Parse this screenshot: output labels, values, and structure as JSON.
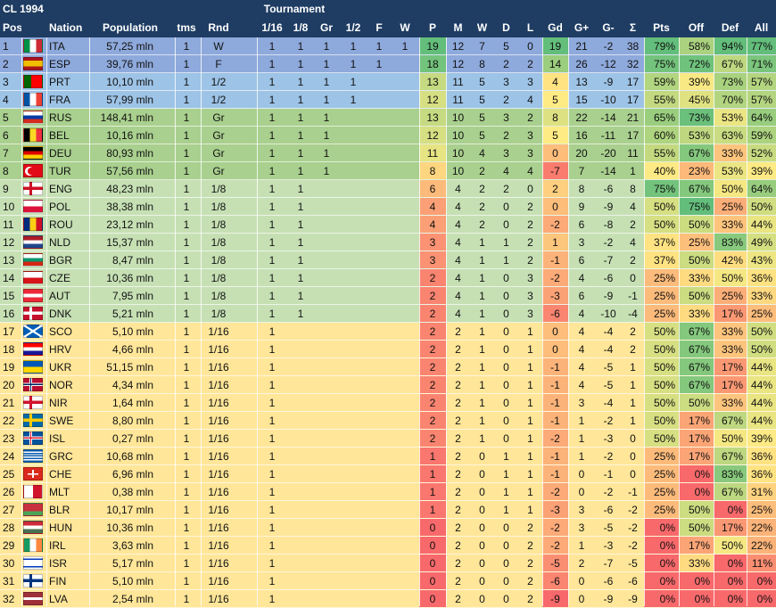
{
  "header": {
    "title": "CL 1994",
    "group_label": "Tournament",
    "columns": [
      "Pos",
      "Nation",
      "Population",
      "tms",
      "Rnd",
      "1/16",
      "1/8",
      "Gr",
      "1/2",
      "F",
      "W",
      "P",
      "M",
      "W",
      "D",
      "L",
      "Gd",
      "G+",
      "G-",
      "Σ",
      "Pts",
      "Off",
      "Def",
      "All"
    ]
  },
  "colors": {
    "header_bg": "#1f3d63",
    "row_top2": "#8ea9db",
    "row_semis": "#9dc3e6",
    "row_group": "#a9d08e",
    "row_r16": "#c6e0b4",
    "row_r32": "#ffe699",
    "good": "#63be7b",
    "mid": "#ffeb84",
    "bad": "#f8696b"
  },
  "rows": [
    {
      "pos": "1",
      "code": "ITA",
      "flag": "ita",
      "pop": "57,25 mln",
      "tms": "1",
      "rnd": "W",
      "r16": "1",
      "r8": "1",
      "gr": "1",
      "sf": "1",
      "f": "1",
      "w": "1",
      "p": "19",
      "m": "12",
      "won": "7",
      "d": "5",
      "lost": "0",
      "gd": "19",
      "gf": "21",
      "ga": "-2",
      "sum": "38",
      "pts": "79%",
      "off": "58%",
      "def": "94%",
      "all": "77%"
    },
    {
      "pos": "2",
      "code": "ESP",
      "flag": "esp",
      "pop": "39,76 mln",
      "tms": "1",
      "rnd": "F",
      "r16": "1",
      "r8": "1",
      "gr": "1",
      "sf": "1",
      "f": "1",
      "w": "",
      "p": "18",
      "m": "12",
      "won": "8",
      "d": "2",
      "lost": "2",
      "gd": "14",
      "gf": "26",
      "ga": "-12",
      "sum": "32",
      "pts": "75%",
      "off": "72%",
      "def": "67%",
      "all": "71%"
    },
    {
      "pos": "3",
      "code": "PRT",
      "flag": "prt",
      "pop": "10,10 mln",
      "tms": "1",
      "rnd": "1/2",
      "r16": "1",
      "r8": "1",
      "gr": "1",
      "sf": "1",
      "f": "",
      "w": "",
      "p": "13",
      "m": "11",
      "won": "5",
      "d": "3",
      "lost": "3",
      "gd": "4",
      "gf": "13",
      "ga": "-9",
      "sum": "17",
      "pts": "59%",
      "off": "39%",
      "def": "73%",
      "all": "57%"
    },
    {
      "pos": "4",
      "code": "FRA",
      "flag": "fra",
      "pop": "57,99 mln",
      "tms": "1",
      "rnd": "1/2",
      "r16": "1",
      "r8": "1",
      "gr": "1",
      "sf": "1",
      "f": "",
      "w": "",
      "p": "12",
      "m": "11",
      "won": "5",
      "d": "2",
      "lost": "4",
      "gd": "5",
      "gf": "15",
      "ga": "-10",
      "sum": "17",
      "pts": "55%",
      "off": "45%",
      "def": "70%",
      "all": "57%"
    },
    {
      "pos": "5",
      "code": "RUS",
      "flag": "rus",
      "pop": "148,41 mln",
      "tms": "1",
      "rnd": "Gr",
      "r16": "1",
      "r8": "1",
      "gr": "1",
      "sf": "",
      "f": "",
      "w": "",
      "p": "13",
      "m": "10",
      "won": "5",
      "d": "3",
      "lost": "2",
      "gd": "8",
      "gf": "22",
      "ga": "-14",
      "sum": "21",
      "pts": "65%",
      "off": "73%",
      "def": "53%",
      "all": "64%"
    },
    {
      "pos": "6",
      "code": "BEL",
      "flag": "bel",
      "pop": "10,16 mln",
      "tms": "1",
      "rnd": "Gr",
      "r16": "1",
      "r8": "1",
      "gr": "1",
      "sf": "",
      "f": "",
      "w": "",
      "p": "12",
      "m": "10",
      "won": "5",
      "d": "2",
      "lost": "3",
      "gd": "5",
      "gf": "16",
      "ga": "-11",
      "sum": "17",
      "pts": "60%",
      "off": "53%",
      "def": "63%",
      "all": "59%"
    },
    {
      "pos": "7",
      "code": "DEU",
      "flag": "deu",
      "pop": "80,93 mln",
      "tms": "1",
      "rnd": "Gr",
      "r16": "1",
      "r8": "1",
      "gr": "1",
      "sf": "",
      "f": "",
      "w": "",
      "p": "11",
      "m": "10",
      "won": "4",
      "d": "3",
      "lost": "3",
      "gd": "0",
      "gf": "20",
      "ga": "-20",
      "sum": "11",
      "pts": "55%",
      "off": "67%",
      "def": "33%",
      "all": "52%"
    },
    {
      "pos": "8",
      "code": "TUR",
      "flag": "tur",
      "pop": "57,56 mln",
      "tms": "1",
      "rnd": "Gr",
      "r16": "1",
      "r8": "1",
      "gr": "1",
      "sf": "",
      "f": "",
      "w": "",
      "p": "8",
      "m": "10",
      "won": "2",
      "d": "4",
      "lost": "4",
      "gd": "-7",
      "gf": "7",
      "ga": "-14",
      "sum": "1",
      "pts": "40%",
      "off": "23%",
      "def": "53%",
      "all": "39%"
    },
    {
      "pos": "9",
      "code": "ENG",
      "flag": "eng",
      "pop": "48,23 mln",
      "tms": "1",
      "rnd": "1/8",
      "r16": "1",
      "r8": "1",
      "gr": "",
      "sf": "",
      "f": "",
      "w": "",
      "p": "6",
      "m": "4",
      "won": "2",
      "d": "2",
      "lost": "0",
      "gd": "2",
      "gf": "8",
      "ga": "-6",
      "sum": "8",
      "pts": "75%",
      "off": "67%",
      "def": "50%",
      "all": "64%"
    },
    {
      "pos": "10",
      "code": "POL",
      "flag": "pol",
      "pop": "38,38 mln",
      "tms": "1",
      "rnd": "1/8",
      "r16": "1",
      "r8": "1",
      "gr": "",
      "sf": "",
      "f": "",
      "w": "",
      "p": "4",
      "m": "4",
      "won": "2",
      "d": "0",
      "lost": "2",
      "gd": "0",
      "gf": "9",
      "ga": "-9",
      "sum": "4",
      "pts": "50%",
      "off": "75%",
      "def": "25%",
      "all": "50%"
    },
    {
      "pos": "11",
      "code": "ROU",
      "flag": "rou",
      "pop": "23,12 mln",
      "tms": "1",
      "rnd": "1/8",
      "r16": "1",
      "r8": "1",
      "gr": "",
      "sf": "",
      "f": "",
      "w": "",
      "p": "4",
      "m": "4",
      "won": "2",
      "d": "0",
      "lost": "2",
      "gd": "-2",
      "gf": "6",
      "ga": "-8",
      "sum": "2",
      "pts": "50%",
      "off": "50%",
      "def": "33%",
      "all": "44%"
    },
    {
      "pos": "12",
      "code": "NLD",
      "flag": "nld",
      "pop": "15,37 mln",
      "tms": "1",
      "rnd": "1/8",
      "r16": "1",
      "r8": "1",
      "gr": "",
      "sf": "",
      "f": "",
      "w": "",
      "p": "3",
      "m": "4",
      "won": "1",
      "d": "1",
      "lost": "2",
      "gd": "1",
      "gf": "3",
      "ga": "-2",
      "sum": "4",
      "pts": "37%",
      "off": "25%",
      "def": "83%",
      "all": "49%"
    },
    {
      "pos": "13",
      "code": "BGR",
      "flag": "bgr",
      "pop": "8,47 mln",
      "tms": "1",
      "rnd": "1/8",
      "r16": "1",
      "r8": "1",
      "gr": "",
      "sf": "",
      "f": "",
      "w": "",
      "p": "3",
      "m": "4",
      "won": "1",
      "d": "1",
      "lost": "2",
      "gd": "-1",
      "gf": "6",
      "ga": "-7",
      "sum": "2",
      "pts": "37%",
      "off": "50%",
      "def": "42%",
      "all": "43%"
    },
    {
      "pos": "14",
      "code": "CZE",
      "flag": "cze",
      "pop": "10,36 mln",
      "tms": "1",
      "rnd": "1/8",
      "r16": "1",
      "r8": "1",
      "gr": "",
      "sf": "",
      "f": "",
      "w": "",
      "p": "2",
      "m": "4",
      "won": "1",
      "d": "0",
      "lost": "3",
      "gd": "-2",
      "gf": "4",
      "ga": "-6",
      "sum": "0",
      "pts": "25%",
      "off": "33%",
      "def": "50%",
      "all": "36%"
    },
    {
      "pos": "15",
      "code": "AUT",
      "flag": "aut",
      "pop": "7,95 mln",
      "tms": "1",
      "rnd": "1/8",
      "r16": "1",
      "r8": "1",
      "gr": "",
      "sf": "",
      "f": "",
      "w": "",
      "p": "2",
      "m": "4",
      "won": "1",
      "d": "0",
      "lost": "3",
      "gd": "-3",
      "gf": "6",
      "ga": "-9",
      "sum": "-1",
      "pts": "25%",
      "off": "50%",
      "def": "25%",
      "all": "33%"
    },
    {
      "pos": "16",
      "code": "DNK",
      "flag": "dnk",
      "pop": "5,21 mln",
      "tms": "1",
      "rnd": "1/8",
      "r16": "1",
      "r8": "1",
      "gr": "",
      "sf": "",
      "f": "",
      "w": "",
      "p": "2",
      "m": "4",
      "won": "1",
      "d": "0",
      "lost": "3",
      "gd": "-6",
      "gf": "4",
      "ga": "-10",
      "sum": "-4",
      "pts": "25%",
      "off": "33%",
      "def": "17%",
      "all": "25%"
    },
    {
      "pos": "17",
      "code": "SCO",
      "flag": "sco",
      "pop": "5,10 mln",
      "tms": "1",
      "rnd": "1/16",
      "r16": "1",
      "r8": "",
      "gr": "",
      "sf": "",
      "f": "",
      "w": "",
      "p": "2",
      "m": "2",
      "won": "1",
      "d": "0",
      "lost": "1",
      "gd": "0",
      "gf": "4",
      "ga": "-4",
      "sum": "2",
      "pts": "50%",
      "off": "67%",
      "def": "33%",
      "all": "50%"
    },
    {
      "pos": "18",
      "code": "HRV",
      "flag": "hrv",
      "pop": "4,66 mln",
      "tms": "1",
      "rnd": "1/16",
      "r16": "1",
      "r8": "",
      "gr": "",
      "sf": "",
      "f": "",
      "w": "",
      "p": "2",
      "m": "2",
      "won": "1",
      "d": "0",
      "lost": "1",
      "gd": "0",
      "gf": "4",
      "ga": "-4",
      "sum": "2",
      "pts": "50%",
      "off": "67%",
      "def": "33%",
      "all": "50%"
    },
    {
      "pos": "19",
      "code": "UKR",
      "flag": "ukr",
      "pop": "51,15 mln",
      "tms": "1",
      "rnd": "1/16",
      "r16": "1",
      "r8": "",
      "gr": "",
      "sf": "",
      "f": "",
      "w": "",
      "p": "2",
      "m": "2",
      "won": "1",
      "d": "0",
      "lost": "1",
      "gd": "-1",
      "gf": "4",
      "ga": "-5",
      "sum": "1",
      "pts": "50%",
      "off": "67%",
      "def": "17%",
      "all": "44%"
    },
    {
      "pos": "20",
      "code": "NOR",
      "flag": "nor",
      "pop": "4,34 mln",
      "tms": "1",
      "rnd": "1/16",
      "r16": "1",
      "r8": "",
      "gr": "",
      "sf": "",
      "f": "",
      "w": "",
      "p": "2",
      "m": "2",
      "won": "1",
      "d": "0",
      "lost": "1",
      "gd": "-1",
      "gf": "4",
      "ga": "-5",
      "sum": "1",
      "pts": "50%",
      "off": "67%",
      "def": "17%",
      "all": "44%"
    },
    {
      "pos": "21",
      "code": "NIR",
      "flag": "nir",
      "pop": "1,64 mln",
      "tms": "1",
      "rnd": "1/16",
      "r16": "1",
      "r8": "",
      "gr": "",
      "sf": "",
      "f": "",
      "w": "",
      "p": "2",
      "m": "2",
      "won": "1",
      "d": "0",
      "lost": "1",
      "gd": "-1",
      "gf": "3",
      "ga": "-4",
      "sum": "1",
      "pts": "50%",
      "off": "50%",
      "def": "33%",
      "all": "44%"
    },
    {
      "pos": "22",
      "code": "SWE",
      "flag": "swe",
      "pop": "8,80 mln",
      "tms": "1",
      "rnd": "1/16",
      "r16": "1",
      "r8": "",
      "gr": "",
      "sf": "",
      "f": "",
      "w": "",
      "p": "2",
      "m": "2",
      "won": "1",
      "d": "0",
      "lost": "1",
      "gd": "-1",
      "gf": "1",
      "ga": "-2",
      "sum": "1",
      "pts": "50%",
      "off": "17%",
      "def": "67%",
      "all": "44%"
    },
    {
      "pos": "23",
      "code": "ISL",
      "flag": "isl",
      "pop": "0,27 mln",
      "tms": "1",
      "rnd": "1/16",
      "r16": "1",
      "r8": "",
      "gr": "",
      "sf": "",
      "f": "",
      "w": "",
      "p": "2",
      "m": "2",
      "won": "1",
      "d": "0",
      "lost": "1",
      "gd": "-2",
      "gf": "1",
      "ga": "-3",
      "sum": "0",
      "pts": "50%",
      "off": "17%",
      "def": "50%",
      "all": "39%"
    },
    {
      "pos": "24",
      "code": "GRC",
      "flag": "grc",
      "pop": "10,68 mln",
      "tms": "1",
      "rnd": "1/16",
      "r16": "1",
      "r8": "",
      "gr": "",
      "sf": "",
      "f": "",
      "w": "",
      "p": "1",
      "m": "2",
      "won": "0",
      "d": "1",
      "lost": "1",
      "gd": "-1",
      "gf": "1",
      "ga": "-2",
      "sum": "0",
      "pts": "25%",
      "off": "17%",
      "def": "67%",
      "all": "36%"
    },
    {
      "pos": "25",
      "code": "CHE",
      "flag": "che",
      "pop": "6,96 mln",
      "tms": "1",
      "rnd": "1/16",
      "r16": "1",
      "r8": "",
      "gr": "",
      "sf": "",
      "f": "",
      "w": "",
      "p": "1",
      "m": "2",
      "won": "0",
      "d": "1",
      "lost": "1",
      "gd": "-1",
      "gf": "0",
      "ga": "-1",
      "sum": "0",
      "pts": "25%",
      "off": "0%",
      "def": "83%",
      "all": "36%"
    },
    {
      "pos": "26",
      "code": "MLT",
      "flag": "mlt",
      "pop": "0,38 mln",
      "tms": "1",
      "rnd": "1/16",
      "r16": "1",
      "r8": "",
      "gr": "",
      "sf": "",
      "f": "",
      "w": "",
      "p": "1",
      "m": "2",
      "won": "0",
      "d": "1",
      "lost": "1",
      "gd": "-2",
      "gf": "0",
      "ga": "-2",
      "sum": "-1",
      "pts": "25%",
      "off": "0%",
      "def": "67%",
      "all": "31%"
    },
    {
      "pos": "27",
      "code": "BLR",
      "flag": "blr",
      "pop": "10,17 mln",
      "tms": "1",
      "rnd": "1/16",
      "r16": "1",
      "r8": "",
      "gr": "",
      "sf": "",
      "f": "",
      "w": "",
      "p": "1",
      "m": "2",
      "won": "0",
      "d": "1",
      "lost": "1",
      "gd": "-3",
      "gf": "3",
      "ga": "-6",
      "sum": "-2",
      "pts": "25%",
      "off": "50%",
      "def": "0%",
      "all": "25%"
    },
    {
      "pos": "28",
      "code": "HUN",
      "flag": "hun",
      "pop": "10,36 mln",
      "tms": "1",
      "rnd": "1/16",
      "r16": "1",
      "r8": "",
      "gr": "",
      "sf": "",
      "f": "",
      "w": "",
      "p": "0",
      "m": "2",
      "won": "0",
      "d": "0",
      "lost": "2",
      "gd": "-2",
      "gf": "3",
      "ga": "-5",
      "sum": "-2",
      "pts": "0%",
      "off": "50%",
      "def": "17%",
      "all": "22%"
    },
    {
      "pos": "29",
      "code": "IRL",
      "flag": "irl",
      "pop": "3,63 mln",
      "tms": "1",
      "rnd": "1/16",
      "r16": "1",
      "r8": "",
      "gr": "",
      "sf": "",
      "f": "",
      "w": "",
      "p": "0",
      "m": "2",
      "won": "0",
      "d": "0",
      "lost": "2",
      "gd": "-2",
      "gf": "1",
      "ga": "-3",
      "sum": "-2",
      "pts": "0%",
      "off": "17%",
      "def": "50%",
      "all": "22%"
    },
    {
      "pos": "30",
      "code": "ISR",
      "flag": "isr",
      "pop": "5,17 mln",
      "tms": "1",
      "rnd": "1/16",
      "r16": "1",
      "r8": "",
      "gr": "",
      "sf": "",
      "f": "",
      "w": "",
      "p": "0",
      "m": "2",
      "won": "0",
      "d": "0",
      "lost": "2",
      "gd": "-5",
      "gf": "2",
      "ga": "-7",
      "sum": "-5",
      "pts": "0%",
      "off": "33%",
      "def": "0%",
      "all": "11%"
    },
    {
      "pos": "31",
      "code": "FIN",
      "flag": "fin",
      "pop": "5,10 mln",
      "tms": "1",
      "rnd": "1/16",
      "r16": "1",
      "r8": "",
      "gr": "",
      "sf": "",
      "f": "",
      "w": "",
      "p": "0",
      "m": "2",
      "won": "0",
      "d": "0",
      "lost": "2",
      "gd": "-6",
      "gf": "0",
      "ga": "-6",
      "sum": "-6",
      "pts": "0%",
      "off": "0%",
      "def": "0%",
      "all": "0%"
    },
    {
      "pos": "32",
      "code": "LVA",
      "flag": "lva",
      "pop": "2,54 mln",
      "tms": "1",
      "rnd": "1/16",
      "r16": "1",
      "r8": "",
      "gr": "",
      "sf": "",
      "f": "",
      "w": "",
      "p": "0",
      "m": "2",
      "won": "0",
      "d": "0",
      "lost": "2",
      "gd": "-9",
      "gf": "0",
      "ga": "-9",
      "sum": "-9",
      "pts": "0%",
      "off": "0%",
      "def": "0%",
      "all": "0%"
    }
  ]
}
